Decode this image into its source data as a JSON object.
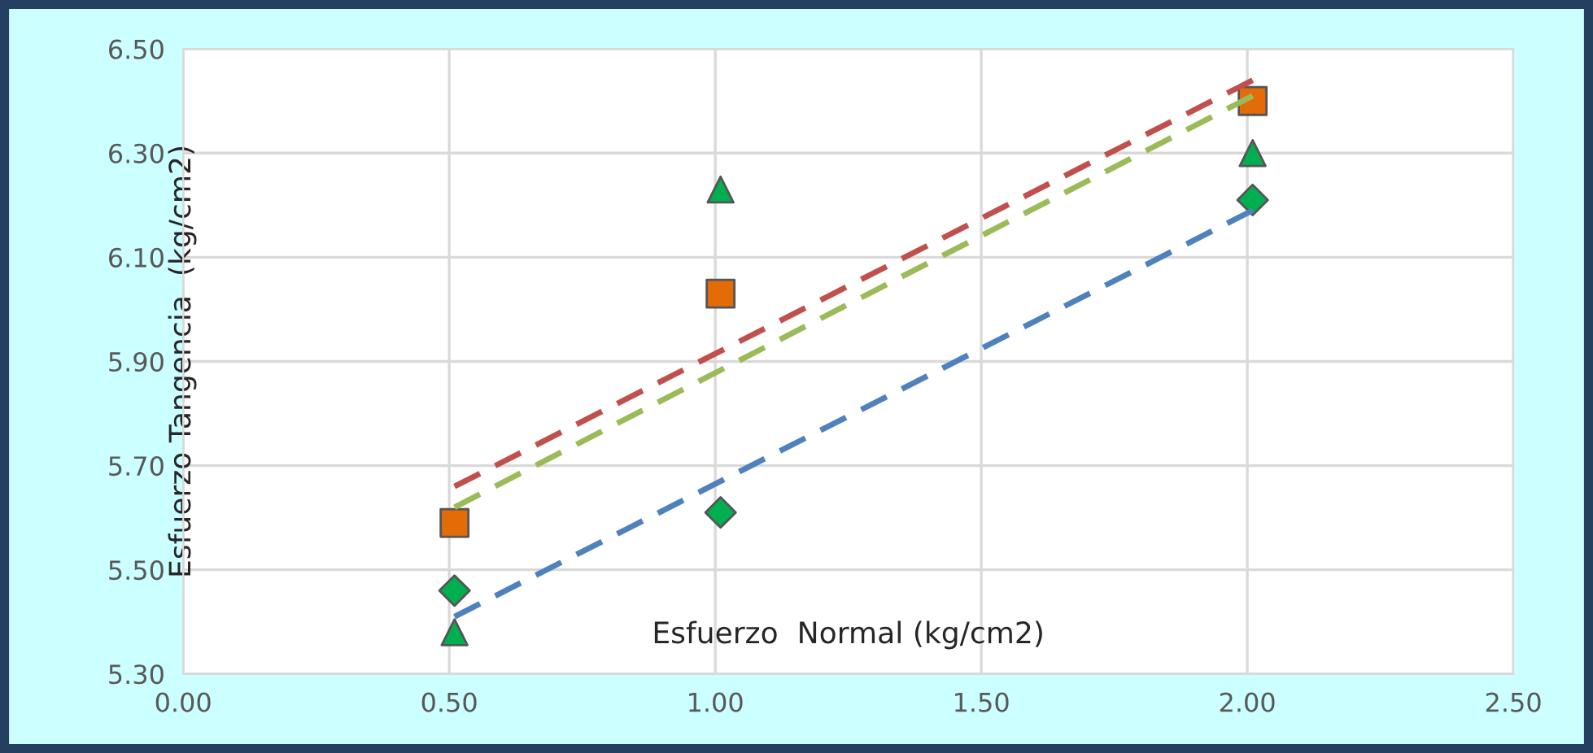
{
  "chart_data": {
    "type": "scatter",
    "xlabel": "Esfuerzo  Normal (kg/cm2)",
    "ylabel": "Esfuerzo Tangencia  (kg/cm2)",
    "series": [
      {
        "marker": "diamond",
        "color": "#00b050",
        "x": [
          0.51,
          1.01,
          2.01
        ],
        "values": [
          5.46,
          5.61,
          6.21
        ]
      },
      {
        "marker": "square",
        "color": "#e36c09",
        "x": [
          0.51,
          1.01,
          2.01
        ],
        "values": [
          5.59,
          6.03,
          6.4
        ]
      },
      {
        "marker": "triangle",
        "color": "#00b050",
        "x": [
          0.51,
          1.01,
          2.01
        ],
        "values": [
          5.38,
          6.23,
          6.3
        ]
      },
      {
        "type": "line",
        "line_style": "dashed",
        "color": "#4f81bd",
        "x": [
          0.51,
          2.01
        ],
        "values": [
          5.41,
          6.19
        ]
      },
      {
        "type": "line",
        "line_style": "dashed",
        "color": "#c0504d",
        "x": [
          0.51,
          2.01
        ],
        "values": [
          5.66,
          6.44
        ]
      },
      {
        "type": "line",
        "line_style": "dashed",
        "color": "#9bbb59",
        "x": [
          0.51,
          2.01
        ],
        "values": [
          5.62,
          6.41
        ]
      }
    ],
    "xlim": [
      0,
      2.5
    ],
    "ylim": [
      5.3,
      6.5
    ],
    "xticks": [
      {
        "value": 0,
        "label": "0.00"
      },
      {
        "value": 0.5,
        "label": "0.50"
      },
      {
        "value": 1,
        "label": "1.00"
      },
      {
        "value": 1.5,
        "label": "1.50"
      },
      {
        "value": 2,
        "label": "2.00"
      },
      {
        "value": 2.5,
        "label": "2.50"
      }
    ],
    "yticks": [
      {
        "value": 5.3,
        "label": "5.30"
      },
      {
        "value": 5.5,
        "label": "5.50"
      },
      {
        "value": 5.7,
        "label": "5.70"
      },
      {
        "value": 5.9,
        "label": "5.90"
      },
      {
        "value": 6.1,
        "label": "6.10"
      },
      {
        "value": 6.3,
        "label": "6.30"
      },
      {
        "value": 6.5,
        "label": "6.50"
      }
    ],
    "grid": true,
    "legend": false
  }
}
